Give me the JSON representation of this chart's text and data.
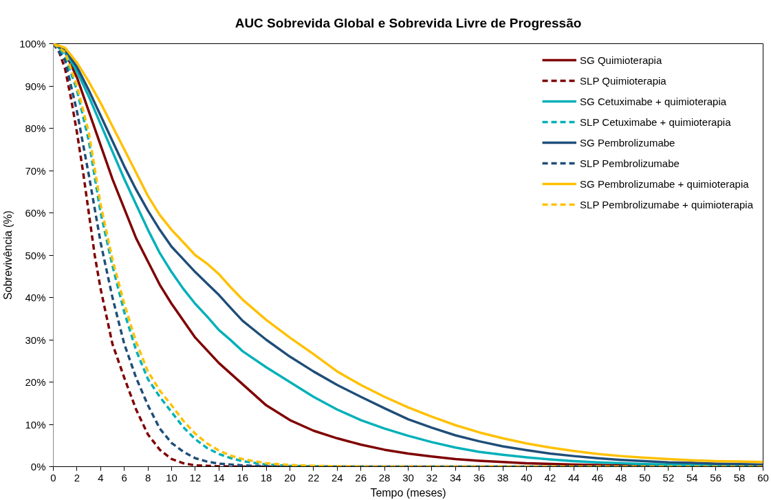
{
  "chart_data": {
    "type": "line",
    "title": "AUC Sobrevida Global e Sobrevida Livre de Progressão",
    "xlabel": "Tempo (meses)",
    "ylabel": "Sobrevivência (%)",
    "xlim": [
      0,
      60
    ],
    "xticks": [
      0,
      2,
      4,
      6,
      8,
      10,
      12,
      14,
      16,
      18,
      20,
      22,
      24,
      26,
      28,
      30,
      32,
      34,
      36,
      38,
      40,
      42,
      44,
      46,
      48,
      50,
      52,
      54,
      56,
      58,
      60
    ],
    "ylim": [
      0,
      100
    ],
    "yticks": [
      {
        "value": 0,
        "label": "0%"
      },
      {
        "value": 10,
        "label": "10%"
      },
      {
        "value": 20,
        "label": "20%"
      },
      {
        "value": 30,
        "label": "30%"
      },
      {
        "value": 40,
        "label": "40%"
      },
      {
        "value": 50,
        "label": "50%"
      },
      {
        "value": 60,
        "label": "60%"
      },
      {
        "value": 70,
        "label": "70%"
      },
      {
        "value": 80,
        "label": "80%"
      },
      {
        "value": 90,
        "label": "90%"
      },
      {
        "value": 100,
        "label": "100%"
      }
    ],
    "grid": false,
    "legend": "top right",
    "marker": "none",
    "series": [
      {
        "name": "SG Quimioterapia",
        "color": "#7f0000",
        "line_style": "solid",
        "x": [
          0,
          1,
          2,
          3,
          4,
          5,
          6,
          7,
          8,
          9,
          10,
          12,
          14,
          16,
          18,
          20,
          22,
          24,
          26,
          28,
          30,
          32,
          34,
          36,
          38,
          40,
          44,
          48,
          52
        ],
        "values": [
          100,
          98,
          92,
          84,
          76,
          68,
          61,
          54,
          48.5,
          43,
          38.5,
          30.5,
          24.5,
          19.5,
          14.5,
          11,
          8.5,
          6.7,
          5.2,
          4,
          3.1,
          2.4,
          1.8,
          1.4,
          1.1,
          0.8,
          0.5,
          0.3,
          0.2
        ]
      },
      {
        "name": "SLP Quimioterapia",
        "color": "#7f0000",
        "line_style": "dashed",
        "x": [
          0,
          0.5,
          1,
          1.5,
          2,
          2.5,
          3,
          3.5,
          4,
          5,
          6,
          7,
          8,
          9,
          10,
          11,
          12,
          14,
          16,
          60
        ],
        "values": [
          100,
          98,
          94,
          87,
          79,
          70,
          60,
          50,
          42,
          29,
          21,
          13.5,
          7.6,
          4,
          1.8,
          0.8,
          0.3,
          0.1,
          0,
          0
        ]
      },
      {
        "name": "SG Cetuximabe + quimioterapia",
        "color": "#00b0b9",
        "line_style": "solid",
        "x": [
          0,
          1,
          2,
          3,
          4,
          5,
          6,
          7,
          8,
          9,
          10,
          11,
          12,
          13,
          14,
          15,
          16,
          18,
          20,
          22,
          24,
          26,
          28,
          30,
          32,
          34,
          36,
          38,
          40,
          42,
          44,
          46,
          48,
          50,
          54,
          58,
          60
        ],
        "values": [
          100,
          98,
          93.5,
          87.5,
          81,
          74.5,
          68,
          62,
          56,
          50.5,
          46,
          42,
          38.5,
          35.5,
          32.3,
          29.9,
          27.3,
          23.5,
          20,
          16.5,
          13.5,
          11,
          9,
          7.3,
          5.8,
          4.5,
          3.5,
          2.8,
          2.2,
          1.7,
          1.3,
          1,
          0.8,
          0.6,
          0.4,
          0.3,
          0.3
        ]
      },
      {
        "name": "SLP Cetuximabe + quimioterapia",
        "color": "#00b0b9",
        "line_style": "dashed",
        "x": [
          0,
          1,
          2,
          3,
          4,
          5,
          6,
          7,
          8,
          9,
          10,
          11,
          12,
          13,
          14,
          15,
          16,
          18,
          20,
          22,
          24,
          60
        ],
        "values": [
          100,
          97,
          89,
          77,
          60,
          47.5,
          36.5,
          27.5,
          20.7,
          16.5,
          12.9,
          9.3,
          6.5,
          4.4,
          3,
          2,
          1.3,
          0.5,
          0.2,
          0.1,
          0,
          0
        ]
      },
      {
        "name": "SG Pembrolizumabe",
        "color": "#1f4e79",
        "line_style": "solid",
        "x": [
          0,
          1,
          2,
          3,
          4,
          5,
          6,
          7,
          8,
          9,
          10,
          11,
          12,
          13,
          14,
          15,
          16,
          18,
          20,
          22,
          24,
          26,
          28,
          30,
          32,
          34,
          36,
          38,
          40,
          42,
          44,
          46,
          48,
          50,
          52,
          54,
          56,
          58,
          60
        ],
        "values": [
          100,
          98.5,
          94.5,
          89,
          83,
          77,
          71,
          65.5,
          60.5,
          56,
          52,
          49,
          46,
          43.3,
          40.6,
          37.5,
          34.5,
          30,
          26,
          22.5,
          19.3,
          16.5,
          13.8,
          11.2,
          9.2,
          7.4,
          6,
          4.8,
          3.9,
          3.1,
          2.5,
          2,
          1.6,
          1.3,
          1.0,
          0.9,
          0.7,
          0.6,
          0.5
        ]
      },
      {
        "name": "SLP Pembrolizumabe",
        "color": "#1f4e79",
        "line_style": "dashed",
        "x": [
          0,
          1,
          2,
          3,
          4,
          5,
          6,
          7,
          8,
          9,
          10,
          11,
          12,
          13,
          14,
          16,
          18,
          20,
          60
        ],
        "values": [
          100,
          96,
          84,
          69,
          53,
          40,
          29,
          21,
          14.5,
          9,
          5.6,
          3.5,
          2,
          1.2,
          0.7,
          0.3,
          0.1,
          0,
          0
        ]
      },
      {
        "name": "SG Pembrolizumabe + quimioterapia",
        "color": "#ffc000",
        "line_style": "solid",
        "x": [
          0,
          1,
          2,
          3,
          4,
          5,
          6,
          7,
          8,
          9,
          10,
          11,
          12,
          13,
          14,
          15,
          16,
          18,
          20,
          22,
          24,
          26,
          28,
          30,
          32,
          34,
          36,
          38,
          40,
          42,
          44,
          46,
          48,
          50,
          52,
          54,
          56,
          58,
          60
        ],
        "values": [
          100,
          99,
          95.5,
          91,
          86,
          80.5,
          75,
          69.5,
          64,
          59.5,
          56,
          53,
          50,
          48,
          45.5,
          42.4,
          39.5,
          34.7,
          30.5,
          26.6,
          22.5,
          19.3,
          16.5,
          14,
          11.8,
          9.8,
          8.1,
          6.7,
          5.5,
          4.5,
          3.7,
          3,
          2.5,
          2.1,
          1.8,
          1.5,
          1.3,
          1.2,
          1.1
        ]
      },
      {
        "name": "SLP Pembrolizumabe + quimioterapia",
        "color": "#ffc000",
        "line_style": "dashed",
        "x": [
          0,
          1,
          2,
          3,
          4,
          5,
          6,
          7,
          8,
          9,
          10,
          11,
          12,
          13,
          14,
          15,
          16,
          18,
          20,
          22,
          24,
          26,
          60
        ],
        "values": [
          100,
          98,
          90,
          79,
          62,
          49,
          38.5,
          29.5,
          22.5,
          18,
          14.5,
          10.8,
          7.8,
          5.5,
          3.8,
          2.6,
          1.8,
          0.8,
          0.4,
          0.2,
          0.1,
          0,
          0
        ]
      }
    ]
  }
}
